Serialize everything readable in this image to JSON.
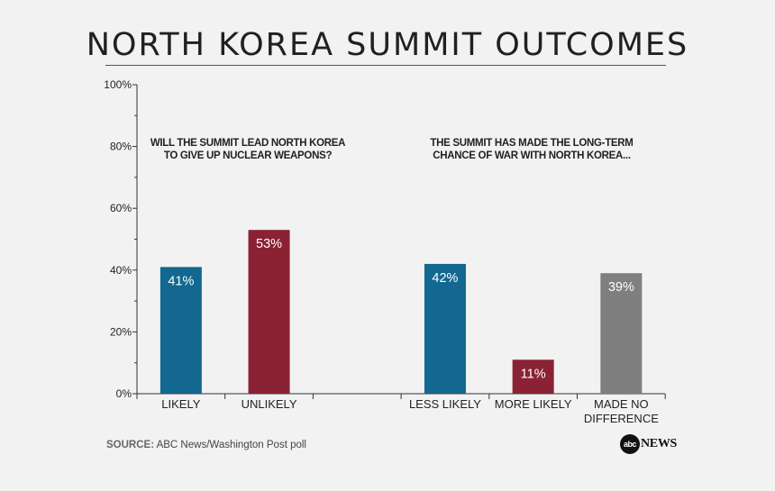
{
  "title": "NORTH KOREA SUMMIT OUTCOMES",
  "chart_data": {
    "type": "bar",
    "title": "NORTH KOREA SUMMIT OUTCOMES",
    "ylim": [
      0,
      100
    ],
    "yticks": [
      "0%",
      "20%",
      "40%",
      "60%",
      "80%",
      "100%"
    ],
    "grid": false,
    "groups": [
      {
        "question_lines": [
          "WILL THE SUMMIT LEAD NORTH KOREA",
          "TO GIVE UP NUCLEAR WEAPONS?"
        ],
        "categories": [
          "LIKELY",
          "UNLIKELY"
        ],
        "values": [
          41,
          53
        ],
        "labels": [
          "41%",
          "53%"
        ],
        "colors": [
          "#126890",
          "#8a2233"
        ]
      },
      {
        "question_lines": [
          "THE SUMMIT HAS MADE THE LONG-TERM",
          "CHANCE OF WAR WITH NORTH KOREA..."
        ],
        "categories": [
          "LESS LIKELY",
          "MORE LIKELY",
          "MADE NO DIFFERENCE"
        ],
        "category_lines": [
          [
            "LESS LIKELY"
          ],
          [
            "MORE LIKELY"
          ],
          [
            "MADE NO",
            "DIFFERENCE"
          ]
        ],
        "values": [
          42,
          11,
          39
        ],
        "labels": [
          "42%",
          "11%",
          "39%"
        ],
        "colors": [
          "#126890",
          "#8a2233",
          "#7f7f7f"
        ]
      }
    ]
  },
  "source": {
    "label": "SOURCE:",
    "text": "ABC News/Washington Post poll"
  },
  "logo": {
    "circle_text": "abc",
    "text": "NEWS"
  }
}
